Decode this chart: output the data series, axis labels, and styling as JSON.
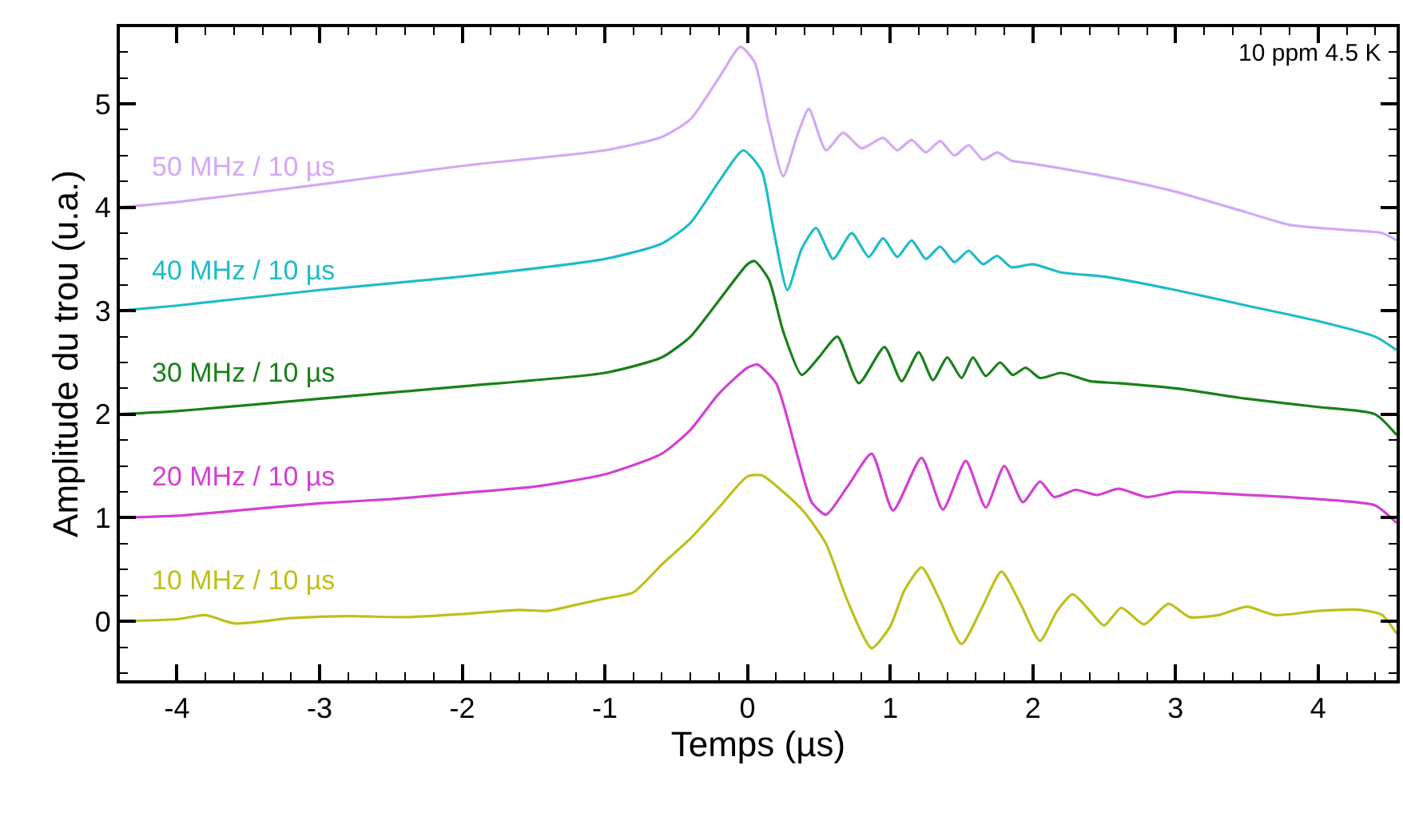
{
  "chart_data": {
    "type": "line",
    "xlabel": "Temps (µs)",
    "ylabel": "Amplitude du trou (u.a.)",
    "annotations": [
      "10 ppm 4.5 K"
    ],
    "legend": false,
    "marker": "none",
    "line_style": "solid",
    "xlim": [
      -4.4,
      4.55
    ],
    "ylim": [
      -0.57,
      5.74
    ],
    "xticks": [
      -4,
      {
        "value": -3.8,
        "label": null
      },
      {
        "value": -3.6,
        "label": null
      },
      {
        "value": -3.4,
        "label": null
      },
      {
        "value": -3.2,
        "label": null
      },
      -3,
      {
        "value": -2.8,
        "label": null
      },
      {
        "value": -2.6,
        "label": null
      },
      {
        "value": -2.4,
        "label": null
      },
      {
        "value": -2.2,
        "label": null
      },
      -2,
      {
        "value": -1.8,
        "label": null
      },
      {
        "value": -1.6,
        "label": null
      },
      {
        "value": -1.4,
        "label": null
      },
      {
        "value": -1.2,
        "label": null
      },
      -1,
      {
        "value": -0.8,
        "label": null
      },
      {
        "value": -0.6,
        "label": null
      },
      {
        "value": -0.4,
        "label": null
      },
      {
        "value": -0.2,
        "label": null
      },
      0,
      {
        "value": 0.2,
        "label": null
      },
      {
        "value": 0.4,
        "label": null
      },
      {
        "value": 0.6,
        "label": null
      },
      {
        "value": 0.8,
        "label": null
      },
      1,
      {
        "value": 1.2,
        "label": null
      },
      {
        "value": 1.4,
        "label": null
      },
      {
        "value": 1.6,
        "label": null
      },
      {
        "value": 1.8,
        "label": null
      },
      2,
      {
        "value": 2.2,
        "label": null
      },
      {
        "value": 2.4,
        "label": null
      },
      {
        "value": 2.6,
        "label": null
      },
      {
        "value": 2.8,
        "label": null
      },
      3,
      {
        "value": 3.2,
        "label": null
      },
      {
        "value": 3.4,
        "label": null
      },
      {
        "value": 3.6,
        "label": null
      },
      {
        "value": 3.8,
        "label": null
      },
      4,
      {
        "value": 4.2,
        "label": null
      },
      {
        "value": 4.4,
        "label": null
      }
    ],
    "yticks": [
      {
        "value": -0.5,
        "label": null
      },
      {
        "value": -0.25,
        "label": null
      },
      0,
      {
        "value": 0.25,
        "label": null
      },
      {
        "value": 0.5,
        "label": null
      },
      {
        "value": 0.75,
        "label": null
      },
      1,
      {
        "value": 1.25,
        "label": null
      },
      {
        "value": 1.5,
        "label": null
      },
      {
        "value": 1.75,
        "label": null
      },
      2,
      {
        "value": 2.25,
        "label": null
      },
      {
        "value": 2.5,
        "label": null
      },
      {
        "value": 2.75,
        "label": null
      },
      3,
      {
        "value": 3.25,
        "label": null
      },
      {
        "value": 3.5,
        "label": null
      },
      {
        "value": 3.75,
        "label": null
      },
      4,
      {
        "value": 4.25,
        "label": null
      },
      {
        "value": 4.5,
        "label": null
      },
      {
        "value": 4.75,
        "label": null
      },
      5,
      {
        "value": 5.25,
        "label": null
      },
      {
        "value": 5.5,
        "label": null
      }
    ],
    "series": [
      {
        "name": "50 MHz / 10 µs",
        "color": "#d4a8f5",
        "x": [
          -4.4,
          -4.0,
          -3.0,
          -2.0,
          -1.0,
          -0.6,
          -0.4,
          -0.2,
          -0.05,
          0.05,
          0.15,
          0.25,
          0.35,
          0.43,
          0.55,
          0.67,
          0.8,
          0.95,
          1.05,
          1.15,
          1.25,
          1.35,
          1.45,
          1.55,
          1.65,
          1.75,
          1.85,
          2.0,
          2.5,
          3.0,
          3.5,
          3.8,
          4.2,
          4.45,
          4.55
        ],
        "values": [
          4.0,
          4.05,
          4.22,
          4.4,
          4.55,
          4.68,
          4.85,
          5.25,
          5.55,
          5.4,
          4.8,
          4.3,
          4.7,
          4.95,
          4.55,
          4.72,
          4.57,
          4.67,
          4.55,
          4.65,
          4.53,
          4.64,
          4.5,
          4.6,
          4.46,
          4.53,
          4.45,
          4.42,
          4.3,
          4.15,
          3.95,
          3.83,
          3.78,
          3.75,
          3.68
        ]
      },
      {
        "name": "40 MHz / 10 µs",
        "color": "#1ebcc8",
        "x": [
          -4.4,
          -4.0,
          -3.0,
          -2.0,
          -1.0,
          -0.6,
          -0.4,
          -0.2,
          -0.03,
          0.1,
          0.18,
          0.28,
          0.38,
          0.48,
          0.6,
          0.73,
          0.85,
          0.95,
          1.05,
          1.15,
          1.25,
          1.35,
          1.45,
          1.55,
          1.65,
          1.75,
          1.85,
          2.0,
          2.2,
          2.5,
          3.0,
          3.5,
          4.0,
          4.4,
          4.55
        ],
        "values": [
          3.0,
          3.05,
          3.2,
          3.33,
          3.5,
          3.65,
          3.85,
          4.25,
          4.55,
          4.35,
          3.8,
          3.2,
          3.6,
          3.8,
          3.5,
          3.75,
          3.52,
          3.7,
          3.52,
          3.68,
          3.5,
          3.62,
          3.47,
          3.58,
          3.45,
          3.53,
          3.42,
          3.45,
          3.37,
          3.33,
          3.2,
          3.05,
          2.9,
          2.75,
          2.62
        ]
      },
      {
        "name": "30 MHz / 10 µs",
        "color": "#1a801a",
        "x": [
          -4.4,
          -4.0,
          -3.0,
          -2.0,
          -1.0,
          -0.6,
          -0.4,
          -0.2,
          0.0,
          0.05,
          0.15,
          0.25,
          0.38,
          0.5,
          0.63,
          0.78,
          0.96,
          1.08,
          1.2,
          1.3,
          1.4,
          1.5,
          1.58,
          1.67,
          1.77,
          1.86,
          1.95,
          2.05,
          2.2,
          2.4,
          2.6,
          3.0,
          3.5,
          4.0,
          4.4,
          4.55
        ],
        "values": [
          2.0,
          2.03,
          2.15,
          2.27,
          2.4,
          2.55,
          2.75,
          3.1,
          3.45,
          3.48,
          3.3,
          2.8,
          2.38,
          2.55,
          2.75,
          2.3,
          2.65,
          2.32,
          2.6,
          2.33,
          2.55,
          2.35,
          2.55,
          2.37,
          2.5,
          2.38,
          2.45,
          2.35,
          2.4,
          2.32,
          2.3,
          2.25,
          2.15,
          2.07,
          2.0,
          1.8
        ]
      },
      {
        "name": "20 MHz / 10 µs",
        "color": "#d43fd4",
        "x": [
          -4.4,
          -4.0,
          -3.5,
          -3.0,
          -2.5,
          -2.0,
          -1.5,
          -1.0,
          -0.6,
          -0.4,
          -0.2,
          0.0,
          0.07,
          0.2,
          0.35,
          0.45,
          0.55,
          0.7,
          0.87,
          1.02,
          1.22,
          1.37,
          1.53,
          1.67,
          1.8,
          1.93,
          2.05,
          2.15,
          2.3,
          2.45,
          2.6,
          2.8,
          3.0,
          3.5,
          4.0,
          4.4,
          4.55
        ],
        "values": [
          1.0,
          1.02,
          1.08,
          1.14,
          1.18,
          1.24,
          1.3,
          1.42,
          1.62,
          1.85,
          2.2,
          2.45,
          2.48,
          2.3,
          1.6,
          1.15,
          1.03,
          1.3,
          1.62,
          1.07,
          1.58,
          1.08,
          1.55,
          1.1,
          1.5,
          1.15,
          1.35,
          1.2,
          1.27,
          1.22,
          1.28,
          1.2,
          1.25,
          1.22,
          1.18,
          1.12,
          0.95
        ]
      },
      {
        "name": "10 MHz / 10 µs",
        "color": "#bfbf1a",
        "x": [
          -4.4,
          -4.0,
          -3.8,
          -3.6,
          -3.2,
          -2.8,
          -2.4,
          -2.0,
          -1.6,
          -1.4,
          -1.2,
          -1.0,
          -0.8,
          -0.6,
          -0.4,
          -0.2,
          0.0,
          0.1,
          0.25,
          0.4,
          0.55,
          0.7,
          0.87,
          1.0,
          1.1,
          1.22,
          1.35,
          1.5,
          1.65,
          1.78,
          1.92,
          2.05,
          2.17,
          2.28,
          2.4,
          2.5,
          2.62,
          2.78,
          2.95,
          3.1,
          3.3,
          3.5,
          3.7,
          4.0,
          4.3,
          4.45,
          4.55
        ],
        "values": [
          0.0,
          0.02,
          0.06,
          -0.02,
          0.03,
          0.05,
          0.04,
          0.07,
          0.11,
          0.1,
          0.16,
          0.22,
          0.28,
          0.55,
          0.8,
          1.1,
          1.4,
          1.41,
          1.25,
          1.05,
          0.75,
          0.2,
          -0.26,
          -0.05,
          0.3,
          0.52,
          0.2,
          -0.22,
          0.15,
          0.48,
          0.15,
          -0.19,
          0.1,
          0.26,
          0.1,
          -0.04,
          0.13,
          -0.03,
          0.17,
          0.04,
          0.06,
          0.14,
          0.06,
          0.1,
          0.11,
          0.06,
          -0.12
        ]
      }
    ]
  }
}
